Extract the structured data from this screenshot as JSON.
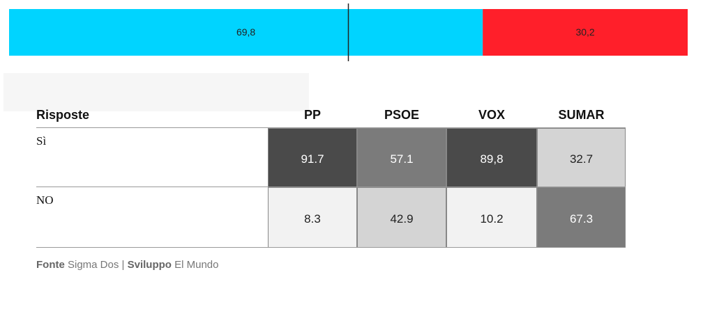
{
  "chart_data": {
    "type": "stacked-bar",
    "values": [
      69.8,
      30.2
    ],
    "value_labels": [
      "69,8",
      "30,2"
    ],
    "colors": [
      "#00d4ff",
      "#ff1f2a"
    ],
    "xlim": [
      0,
      100
    ]
  },
  "table": {
    "header": [
      "Risposte",
      "PP",
      "PSOE",
      "VOX",
      "SUMAR"
    ],
    "rows": [
      [
        "Sì",
        "91.7",
        "57.1",
        "89,8",
        "32.7"
      ],
      [
        "NO",
        "8.3",
        "42.9",
        "10.2",
        "67.3"
      ]
    ],
    "shades": [
      [
        "#4a4a4a",
        "#7b7b7b",
        "#4a4a4a",
        "#d4d4d4"
      ],
      [
        "#f2f2f2",
        "#d4d4d4",
        "#f2f2f2",
        "#7b7b7b"
      ]
    ]
  },
  "footer": {
    "source_label": "Fonte",
    "source": "Sigma Dos",
    "separator": "|",
    "dev_label": "Sviluppo",
    "dev": "El Mundo"
  }
}
